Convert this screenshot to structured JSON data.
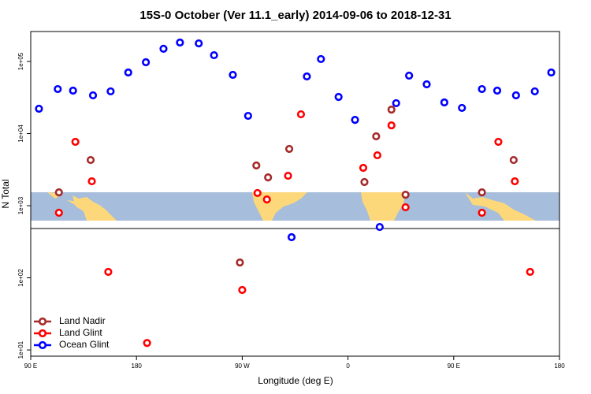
{
  "chart_data": {
    "type": "scatter",
    "title": "15S-0 October (Ver 11.1_early)   2014-09-06 to 2018-12-31",
    "x_label": "Longitude (deg E)",
    "y_label": "N Total",
    "log_y": true,
    "legend": "bottom-left",
    "xlim": [
      90,
      540
    ],
    "xticks": [
      {
        "value": 90,
        "label": "90 E"
      },
      180,
      {
        "value": 270,
        "label": "90 W"
      },
      {
        "value": 360,
        "label": "0"
      },
      {
        "value": 450,
        "label": "90 E"
      },
      {
        "value": 540,
        "label": "180"
      }
    ],
    "ylim": [
      8.2,
      260000
    ],
    "yticks": [
      {
        "value": 10,
        "label": "1e+01"
      },
      {
        "value": 100,
        "label": "1e+02"
      },
      {
        "value": 1000,
        "label": "1e+03"
      },
      {
        "value": 10000,
        "label": "1e+04"
      },
      {
        "value": 100000,
        "label": "1e+05"
      }
    ],
    "series": [
      {
        "name": "Land Nadir",
        "color": "#a52a2a",
        "x": [
          114,
          141,
          268,
          282,
          292,
          310,
          374,
          384,
          397,
          409,
          474,
          501
        ],
        "values": [
          1530,
          4300,
          163,
          3610,
          2470,
          6120,
          2130,
          9160,
          21500,
          1420,
          1530,
          4300
        ]
      },
      {
        "name": "Land Glint",
        "color": "#ff0000",
        "x": [
          114,
          128,
          142,
          156,
          189,
          270,
          283,
          291,
          309,
          320,
          373,
          385,
          397,
          409,
          474,
          488,
          502,
          515
        ],
        "values": [
          798,
          7680,
          2180,
          121,
          12.5,
          67.8,
          1500,
          1220,
          2600,
          18500,
          3350,
          5000,
          13000,
          951,
          798,
          7680,
          2180,
          121
        ]
      },
      {
        "name": "Ocean Glint",
        "color": "#0000ff",
        "x": [
          97,
          113,
          126,
          143,
          158,
          173,
          188,
          203,
          217,
          233,
          246,
          262,
          275,
          312,
          325,
          337,
          352,
          366,
          387,
          401,
          412,
          427,
          442,
          457,
          474,
          487,
          503,
          519,
          533
        ],
        "values": [
          22100,
          41400,
          39400,
          33900,
          38500,
          70300,
          97500,
          150000,
          183000,
          178000,
          122000,
          65200,
          17600,
          366,
          62000,
          108000,
          32200,
          15500,
          507,
          26400,
          63500,
          48200,
          27000,
          22700,
          41400,
          39400,
          33900,
          38500,
          70300
        ]
      }
    ]
  }
}
